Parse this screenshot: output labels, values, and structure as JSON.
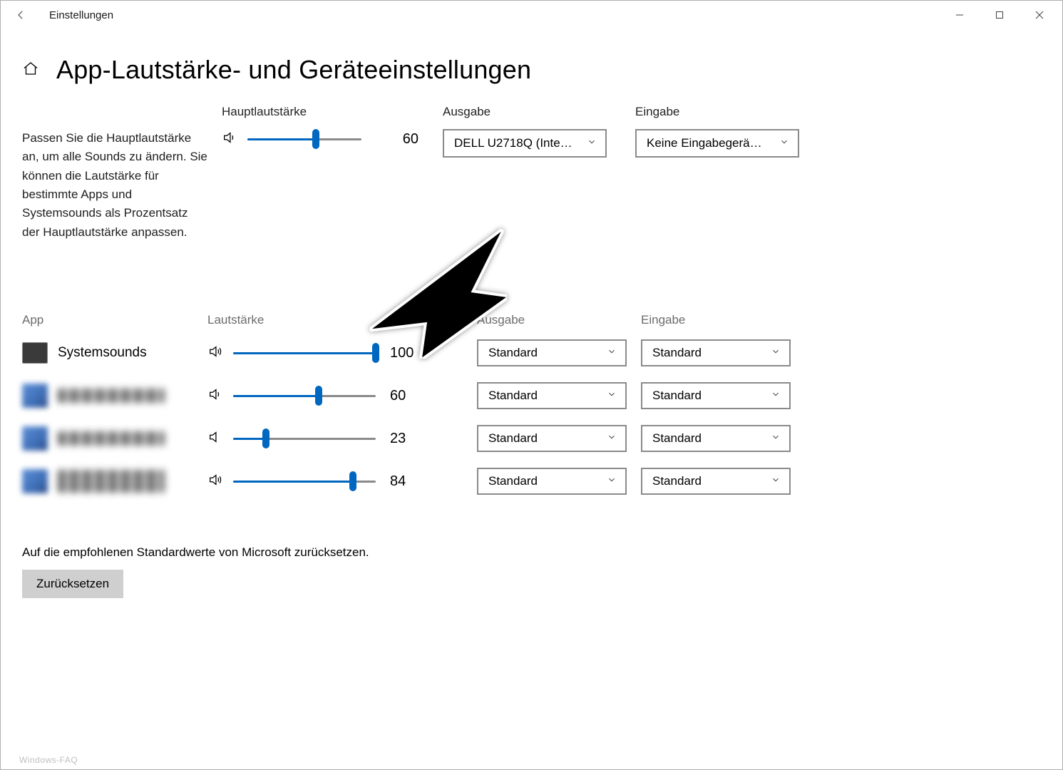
{
  "window": {
    "title": "Einstellungen"
  },
  "page": {
    "title": "App-Lautstärke- und Geräteeinstellungen"
  },
  "description": "Passen Sie die Hauptlautstärke an, um alle Sounds zu ändern. Sie können die Lautstärke für bestimmte Apps und Systemsounds als Prozentsatz der Hauptlautstärke anpassen.",
  "master": {
    "label": "Hauptlautstärke",
    "value": 60,
    "output_label": "Ausgabe",
    "output_value": "DELL U2718Q (Inte…",
    "input_label": "Eingabe",
    "input_value": "Keine Eingabegerä…"
  },
  "columns": {
    "app": "App",
    "volume": "Lautstärke",
    "output": "Ausgabe",
    "input": "Eingabe"
  },
  "apps": [
    {
      "name": "Systemsounds",
      "value": 100,
      "output": "Standard",
      "input": "Standard",
      "blurred": false
    },
    {
      "name": "",
      "value": 60,
      "output": "Standard",
      "input": "Standard",
      "blurred": true
    },
    {
      "name": "",
      "value": 23,
      "output": "Standard",
      "input": "Standard",
      "blurred": true
    },
    {
      "name": "",
      "value": 84,
      "output": "Standard",
      "input": "Standard",
      "blurred": true
    }
  ],
  "reset": {
    "text": "Auf die empfohlenen Standardwerte von Microsoft zurücksetzen.",
    "button": "Zurücksetzen"
  },
  "style": {
    "accent": "#0067c0",
    "border": "#8a8a8a",
    "muted_text": "#6b6b6b",
    "button_bg": "#cfcfcf"
  },
  "watermark": "Windows-FAQ"
}
